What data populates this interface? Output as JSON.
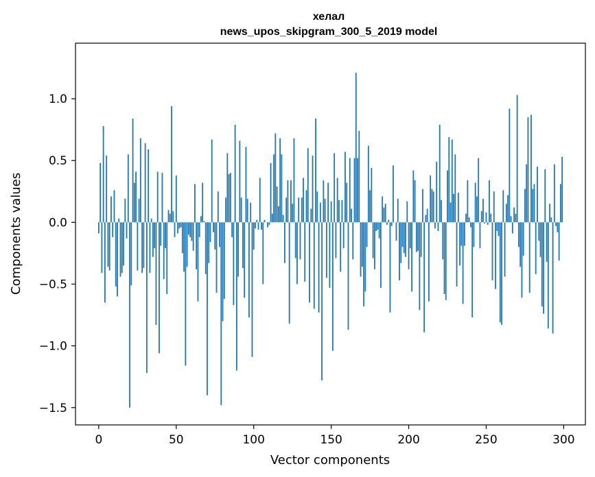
{
  "chart_data": {
    "type": "bar",
    "title": "хелал",
    "subtitle": "news_upos_skipgram_300_5_2019 model",
    "xlabel": "Vector components",
    "ylabel": "Components values",
    "xlim": [
      -15,
      314
    ],
    "ylim": [
      -1.64,
      1.45
    ],
    "xticks": [
      0,
      50,
      100,
      150,
      200,
      250,
      300
    ],
    "yticks": [
      1.0,
      0.5,
      0.0,
      -0.5,
      -1.0,
      -1.5
    ],
    "ytick_labels": [
      "1.0",
      "0.5",
      "0.0",
      "−0.5",
      "−1.0",
      "−1.5"
    ],
    "bar_color": "#1f77b4",
    "grid": false,
    "values": [
      -0.09,
      0.48,
      -0.41,
      0.78,
      -0.65,
      0.54,
      -0.36,
      -0.39,
      0.21,
      -0.12,
      0.26,
      -0.52,
      -0.6,
      0.03,
      -0.44,
      -0.41,
      -0.35,
      0.19,
      -0.13,
      0.55,
      -1.5,
      -0.51,
      0.84,
      0.32,
      0.41,
      -0.39,
      0.19,
      0.68,
      -0.41,
      -0.37,
      0.64,
      -1.22,
      0.59,
      -0.41,
      0.03,
      -0.28,
      -0.21,
      -0.83,
      0.41,
      -1.06,
      -0.19,
      0.4,
      -0.46,
      -0.21,
      -0.58,
      0.1,
      0.07,
      0.94,
      0.09,
      -0.12,
      0.38,
      -0.09,
      -0.05,
      -0.04,
      -0.25,
      -0.4,
      -1.16,
      -0.36,
      -0.1,
      -0.12,
      -0.15,
      -0.23,
      0.31,
      -0.38,
      -0.64,
      -0.12,
      0.05,
      0.32,
      0.01,
      -0.42,
      -1.4,
      -0.33,
      -0.16,
      0.67,
      -0.08,
      -0.22,
      -0.57,
      0.25,
      -0.2,
      -1.48,
      -0.8,
      -0.62,
      0.2,
      0.56,
      0.39,
      0.4,
      -0.12,
      -0.67,
      0.79,
      -1.2,
      -0.44,
      0.66,
      0.2,
      -0.37,
      -0.61,
      0.61,
      0.19,
      -0.77,
      0.16,
      -1.09,
      -0.22,
      -0.05,
      0.02,
      -0.06,
      0.36,
      -0.06,
      -0.5,
      0.02,
      0.0,
      -0.04,
      -0.02,
      0.48,
      0.07,
      0.55,
      0.72,
      0.29,
      0.13,
      0.68,
      0.55,
      0.06,
      -0.33,
      0.2,
      0.34,
      -0.82,
      0.34,
      0.15,
      0.68,
      -0.29,
      -0.5,
      0.2,
      -0.3,
      0.2,
      0.36,
      -0.48,
      0.26,
      0.6,
      -0.65,
      0.11,
      0.54,
      -0.7,
      0.84,
      0.25,
      -0.73,
      0.16,
      -1.28,
      0.34,
      0.19,
      -0.45,
      0.32,
      -0.53,
      0.17,
      -1.04,
      0.56,
      -0.29,
      0.36,
      0.18,
      -0.4,
      0.18,
      -0.21,
      0.57,
      0.32,
      -0.87,
      0.52,
      0.11,
      -0.3,
      0.52,
      1.21,
      0.52,
      0.74,
      -0.44,
      -0.36,
      -0.68,
      -0.56,
      -0.2,
      0.62,
      0.26,
      0.44,
      -0.29,
      -0.38,
      -0.07,
      -0.06,
      -0.13,
      -0.53,
      0.21,
      0.12,
      0.15,
      -0.02,
      0.02,
      -0.73,
      -0.03,
      0.46,
      0.0,
      -0.15,
      0.19,
      -0.47,
      -0.33,
      -0.2,
      -0.25,
      -0.28,
      0.17,
      -0.38,
      -0.21,
      -0.56,
      0.42,
      0.34,
      -0.24,
      -0.23,
      -0.71,
      -0.28,
      0.27,
      -0.89,
      0.06,
      0.11,
      -0.64,
      0.38,
      0.27,
      0.25,
      -0.05,
      0.49,
      -0.07,
      0.79,
      0.18,
      -0.3,
      -0.58,
      -0.63,
      0.42,
      0.69,
      0.16,
      0.67,
      0.23,
      0.55,
      -0.52,
      0.24,
      -0.35,
      -0.19,
      -0.66,
      -0.19,
      0.07,
      0.34,
      0.04,
      -0.04,
      -0.77,
      -0.2,
      0.32,
      0.21,
      0.52,
      -0.21,
      0.09,
      0.19,
      -0.01,
      0.08,
      -0.02,
      0.34,
      0.07,
      -0.47,
      0.25,
      -0.54,
      -0.07,
      -0.11,
      -0.81,
      -0.83,
      0.26,
      -0.44,
      0.15,
      0.22,
      0.92,
      0.05,
      -0.09,
      0.12,
      0.07,
      1.03,
      -0.2,
      -0.36,
      -0.61,
      -0.27,
      0.27,
      0.47,
      0.85,
      -0.57,
      0.87,
      0.27,
      0.31,
      -0.42,
      0.45,
      -0.15,
      -0.28,
      -0.68,
      -0.74,
      0.43,
      -0.32,
      -0.86,
      0.15,
      0.04,
      -0.9,
      0.47,
      -0.03,
      -0.08,
      -0.31,
      0.31,
      0.53
    ]
  }
}
